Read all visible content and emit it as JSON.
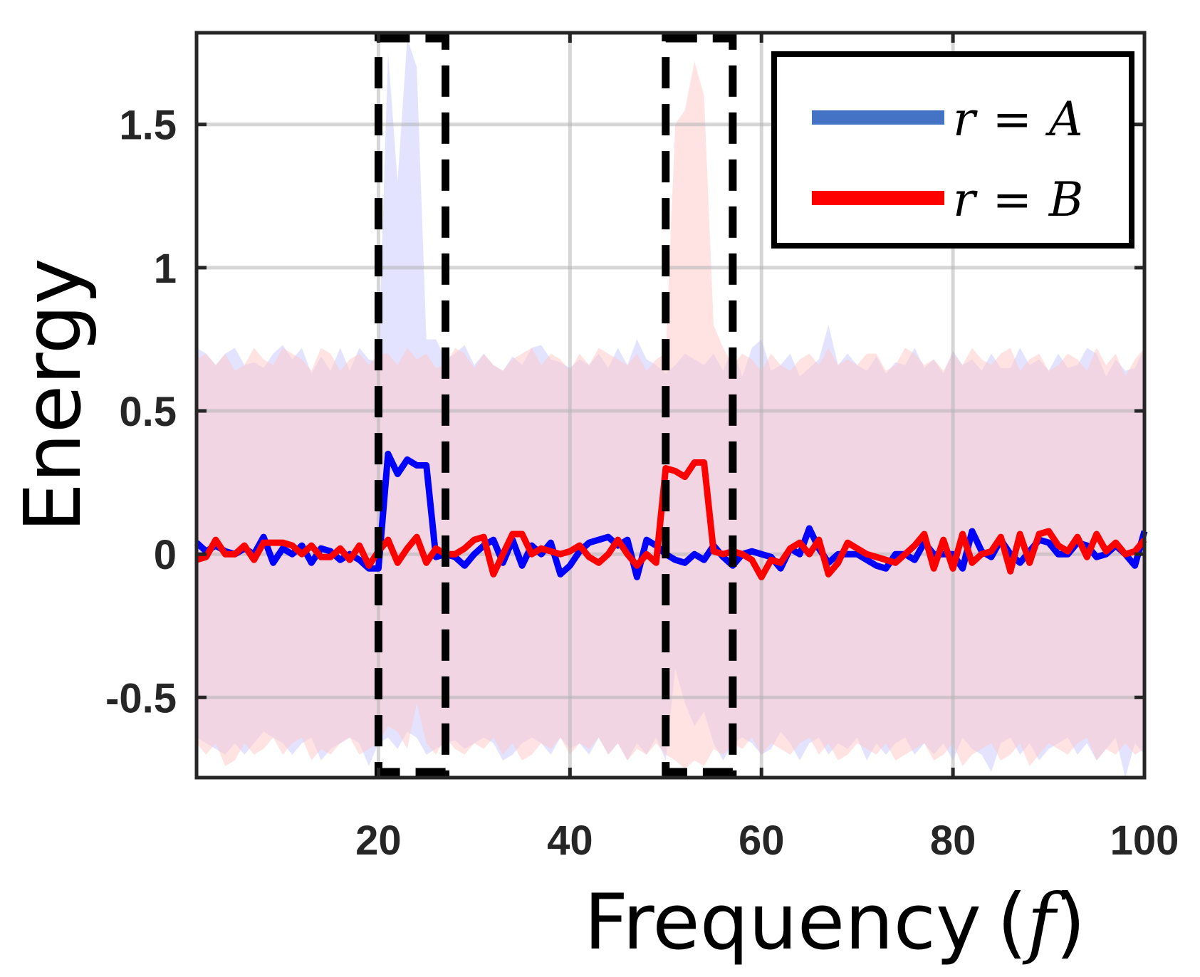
{
  "chart_data": {
    "type": "line",
    "title": "",
    "xlabel": "Frequency",
    "xlabel_symbol": "f",
    "ylabel": "Energy",
    "xlim": [
      1,
      100
    ],
    "ylim": [
      -0.78,
      1.82
    ],
    "xticks": [
      20,
      40,
      60,
      80,
      100
    ],
    "yticks": [
      -0.5,
      0,
      0.5,
      1,
      1.5
    ],
    "xtick_labels": [
      "20",
      "40",
      "60",
      "80",
      "100"
    ],
    "ytick_labels": [
      "-0.5",
      "0",
      "0.5",
      "1",
      "1.5"
    ],
    "grid": true,
    "legend_position": "top-right",
    "series": [
      {
        "name": "r = A",
        "legend_lhs": "r",
        "legend_eq": "=",
        "legend_rhs": "A",
        "color": "#0000ff",
        "legend_color": "#4472c4",
        "band_color": "#c8c8ff",
        "x": [
          1,
          2,
          3,
          4,
          5,
          6,
          7,
          8,
          9,
          10,
          11,
          12,
          13,
          14,
          15,
          16,
          17,
          18,
          19,
          20,
          21,
          22,
          23,
          24,
          25,
          26,
          27,
          28,
          29,
          30,
          31,
          32,
          33,
          34,
          35,
          36,
          37,
          38,
          39,
          40,
          41,
          42,
          43,
          44,
          45,
          46,
          47,
          48,
          49,
          50,
          51,
          52,
          53,
          54,
          55,
          56,
          57,
          58,
          59,
          60,
          61,
          62,
          63,
          64,
          65,
          66,
          67,
          68,
          69,
          70,
          71,
          72,
          73,
          74,
          75,
          76,
          77,
          78,
          79,
          80,
          81,
          82,
          83,
          84,
          85,
          86,
          87,
          88,
          89,
          90,
          91,
          92,
          93,
          94,
          95,
          96,
          97,
          98,
          99,
          100
        ],
        "values": [
          0.04,
          0.01,
          0.03,
          0.01,
          0.0,
          0.02,
          0.0,
          0.06,
          -0.03,
          0.02,
          0.0,
          0.03,
          -0.03,
          0.02,
          0.01,
          -0.02,
          0.0,
          -0.02,
          -0.05,
          -0.05,
          0.35,
          0.28,
          0.33,
          0.31,
          0.31,
          -0.01,
          0.0,
          -0.01,
          -0.04,
          0.0,
          0.03,
          0.05,
          -0.03,
          0.05,
          -0.04,
          0.03,
          0.0,
          0.04,
          -0.07,
          -0.04,
          0.01,
          0.04,
          0.05,
          0.06,
          0.03,
          0.05,
          -0.08,
          0.05,
          0.03,
          0.0,
          -0.02,
          -0.03,
          0.0,
          -0.02,
          0.03,
          -0.01,
          -0.04,
          0.0,
          0.01,
          0.0,
          -0.01,
          -0.05,
          0.02,
          0.0,
          0.09,
          0.02,
          -0.03,
          0.0,
          0.0,
          0.0,
          -0.02,
          -0.04,
          -0.05,
          0.0,
          0.0,
          -0.02,
          0.04,
          0.0,
          0.0,
          0.0,
          -0.05,
          0.08,
          0.01,
          -0.01,
          0.05,
          0.0,
          -0.03,
          0.01,
          0.05,
          0.04,
          0.0,
          0.0,
          0.04,
          0.03,
          -0.01,
          0.0,
          0.03,
          0.0,
          -0.04,
          0.08
        ],
        "band_upper": [
          0.72,
          0.7,
          0.66,
          0.7,
          0.72,
          0.66,
          0.67,
          0.65,
          0.7,
          0.73,
          0.68,
          0.72,
          0.63,
          0.69,
          0.64,
          0.72,
          0.64,
          0.72,
          0.68,
          0.67,
          1.75,
          1.3,
          1.8,
          1.7,
          0.75,
          0.75,
          0.68,
          0.7,
          0.73,
          0.66,
          0.7,
          0.66,
          0.64,
          0.69,
          0.66,
          0.72,
          0.73,
          0.68,
          0.67,
          0.65,
          0.68,
          0.66,
          0.7,
          0.65,
          0.72,
          0.66,
          0.75,
          0.68,
          0.66,
          0.63,
          0.66,
          0.7,
          0.68,
          0.66,
          0.7,
          0.64,
          0.72,
          0.62,
          0.72,
          0.75,
          0.64,
          0.66,
          0.7,
          0.62,
          0.65,
          0.68,
          0.8,
          0.66,
          0.7,
          0.66,
          0.64,
          0.69,
          0.63,
          0.67,
          0.66,
          0.72,
          0.65,
          0.68,
          0.63,
          0.71,
          0.66,
          0.68,
          0.64,
          0.7,
          0.65,
          0.65,
          0.72,
          0.66,
          0.68,
          0.64,
          0.7,
          0.65,
          0.66,
          0.72,
          0.7,
          0.62,
          0.68,
          0.64,
          0.65,
          0.72
        ],
        "band_lower": [
          -0.64,
          -0.66,
          -0.68,
          -0.7,
          -0.66,
          -0.7,
          -0.66,
          -0.62,
          -0.64,
          -0.66,
          -0.7,
          -0.66,
          -0.64,
          -0.72,
          -0.68,
          -0.66,
          -0.64,
          -0.66,
          -0.74,
          -0.66,
          -0.64,
          -0.68,
          -0.62,
          -0.64,
          -0.7,
          -0.68,
          -0.66,
          -0.65,
          -0.68,
          -0.66,
          -0.64,
          -0.66,
          -0.72,
          -0.7,
          -0.66,
          -0.64,
          -0.66,
          -0.7,
          -0.64,
          -0.68,
          -0.66,
          -0.7,
          -0.64,
          -0.7,
          -0.66,
          -0.72,
          -0.66,
          -0.7,
          -0.64,
          -0.72,
          -0.4,
          -0.52,
          -0.6,
          -0.55,
          -0.66,
          -0.72,
          -0.66,
          -0.64,
          -0.66,
          -0.7,
          -0.68,
          -0.62,
          -0.66,
          -0.72,
          -0.66,
          -0.64,
          -0.7,
          -0.66,
          -0.68,
          -0.64,
          -0.72,
          -0.66,
          -0.7,
          -0.66,
          -0.64,
          -0.7,
          -0.66,
          -0.7,
          -0.66,
          -0.72,
          -0.64,
          -0.68,
          -0.7,
          -0.76,
          -0.66,
          -0.64,
          -0.7,
          -0.66,
          -0.72,
          -0.68,
          -0.66,
          -0.64,
          -0.7,
          -0.66,
          -0.72,
          -0.68,
          -0.64,
          -0.78,
          -0.66,
          -0.7
        ]
      },
      {
        "name": "r = B",
        "legend_lhs": "r",
        "legend_eq": "=",
        "legend_rhs": "B",
        "color": "#ff0000",
        "legend_color": "#ff0000",
        "band_color": "#ffc8c8",
        "x": [
          1,
          2,
          3,
          4,
          5,
          6,
          7,
          8,
          9,
          10,
          11,
          12,
          13,
          14,
          15,
          16,
          17,
          18,
          19,
          20,
          21,
          22,
          23,
          24,
          25,
          26,
          27,
          28,
          29,
          30,
          31,
          32,
          33,
          34,
          35,
          36,
          37,
          38,
          39,
          40,
          41,
          42,
          43,
          44,
          45,
          46,
          47,
          48,
          49,
          50,
          51,
          52,
          53,
          54,
          55,
          56,
          57,
          58,
          59,
          60,
          61,
          62,
          63,
          64,
          65,
          66,
          67,
          68,
          69,
          70,
          71,
          72,
          73,
          74,
          75,
          76,
          77,
          78,
          79,
          80,
          81,
          82,
          83,
          84,
          85,
          86,
          87,
          88,
          89,
          90,
          91,
          92,
          93,
          94,
          95,
          96,
          97,
          98,
          99,
          100
        ],
        "values": [
          -0.02,
          -0.01,
          0.05,
          0.0,
          0.0,
          0.03,
          -0.02,
          0.04,
          0.04,
          0.04,
          0.03,
          0.0,
          0.03,
          -0.01,
          -0.01,
          0.02,
          -0.02,
          0.03,
          -0.04,
          0.01,
          0.05,
          -0.03,
          0.02,
          0.06,
          -0.03,
          0.02,
          0.0,
          0.0,
          0.02,
          0.05,
          0.06,
          -0.07,
          0.0,
          0.07,
          0.07,
          0.0,
          0.02,
          0.01,
          0.0,
          0.01,
          0.03,
          -0.01,
          -0.03,
          0.0,
          0.05,
          0.0,
          -0.04,
          0.0,
          -0.03,
          0.3,
          0.29,
          0.27,
          0.32,
          0.32,
          0.01,
          0.0,
          0.01,
          0.0,
          -0.02,
          -0.08,
          -0.02,
          -0.03,
          0.02,
          0.04,
          0.0,
          0.05,
          -0.07,
          -0.03,
          0.04,
          0.02,
          0.0,
          -0.01,
          -0.02,
          -0.03,
          0.0,
          0.03,
          0.07,
          -0.05,
          0.05,
          -0.05,
          0.07,
          -0.03,
          0.0,
          0.01,
          0.06,
          -0.06,
          0.07,
          -0.03,
          0.07,
          0.08,
          0.03,
          0.01,
          0.06,
          -0.01,
          0.07,
          0.01,
          0.04,
          0.0,
          0.01,
          0.05
        ],
        "band_upper": [
          0.68,
          0.7,
          0.66,
          0.7,
          0.64,
          0.66,
          0.72,
          0.68,
          0.66,
          0.72,
          0.7,
          0.68,
          0.64,
          0.72,
          0.7,
          0.64,
          0.68,
          0.7,
          0.66,
          0.7,
          0.7,
          0.66,
          0.72,
          0.68,
          0.7,
          0.65,
          0.66,
          0.72,
          0.7,
          0.65,
          0.7,
          0.66,
          0.64,
          0.68,
          0.7,
          0.72,
          0.66,
          0.7,
          0.68,
          0.64,
          0.7,
          0.66,
          0.72,
          0.7,
          0.68,
          0.66,
          0.7,
          0.64,
          0.68,
          0.7,
          1.5,
          1.55,
          1.72,
          1.6,
          0.8,
          0.72,
          0.66,
          0.7,
          0.68,
          0.64,
          0.7,
          0.66,
          0.64,
          0.68,
          0.7,
          0.66,
          0.72,
          0.66,
          0.68,
          0.66,
          0.7,
          0.7,
          0.64,
          0.66,
          0.72,
          0.7,
          0.66,
          0.68,
          0.64,
          0.7,
          0.66,
          0.72,
          0.68,
          0.66,
          0.7,
          0.72,
          0.64,
          0.68,
          0.7,
          0.64,
          0.66,
          0.7,
          0.68,
          0.64,
          0.72,
          0.66,
          0.7,
          0.62,
          0.68,
          0.72
        ],
        "band_lower": [
          -0.66,
          -0.7,
          -0.66,
          -0.74,
          -0.72,
          -0.66,
          -0.7,
          -0.68,
          -0.64,
          -0.7,
          -0.66,
          -0.64,
          -0.72,
          -0.68,
          -0.7,
          -0.66,
          -0.64,
          -0.7,
          -0.68,
          -0.66,
          -0.6,
          -0.62,
          -0.68,
          -0.52,
          -0.66,
          -0.7,
          -0.64,
          -0.68,
          -0.7,
          -0.66,
          -0.68,
          -0.64,
          -0.7,
          -0.66,
          -0.72,
          -0.7,
          -0.66,
          -0.68,
          -0.64,
          -0.7,
          -0.66,
          -0.68,
          -0.64,
          -0.7,
          -0.66,
          -0.72,
          -0.68,
          -0.7,
          -0.66,
          -0.7,
          -0.72,
          -0.75,
          -0.72,
          -0.74,
          -0.68,
          -0.7,
          -0.66,
          -0.68,
          -0.64,
          -0.7,
          -0.66,
          -0.68,
          -0.7,
          -0.66,
          -0.64,
          -0.7,
          -0.66,
          -0.72,
          -0.7,
          -0.66,
          -0.68,
          -0.7,
          -0.66,
          -0.72,
          -0.7,
          -0.68,
          -0.66,
          -0.72,
          -0.7,
          -0.66,
          -0.74,
          -0.7,
          -0.68,
          -0.66,
          -0.72,
          -0.7,
          -0.66,
          -0.74,
          -0.7,
          -0.66,
          -0.68,
          -0.7,
          -0.66,
          -0.64,
          -0.72,
          -0.68,
          -0.7,
          -0.66,
          -0.7,
          -0.68
        ]
      }
    ],
    "annotations": [
      {
        "type": "dashed-rect",
        "x_range": [
          20,
          27
        ],
        "y_range": [
          -0.76,
          1.8
        ]
      },
      {
        "type": "dashed-rect",
        "x_range": [
          50,
          57
        ],
        "y_range": [
          -0.76,
          1.8
        ]
      }
    ]
  }
}
